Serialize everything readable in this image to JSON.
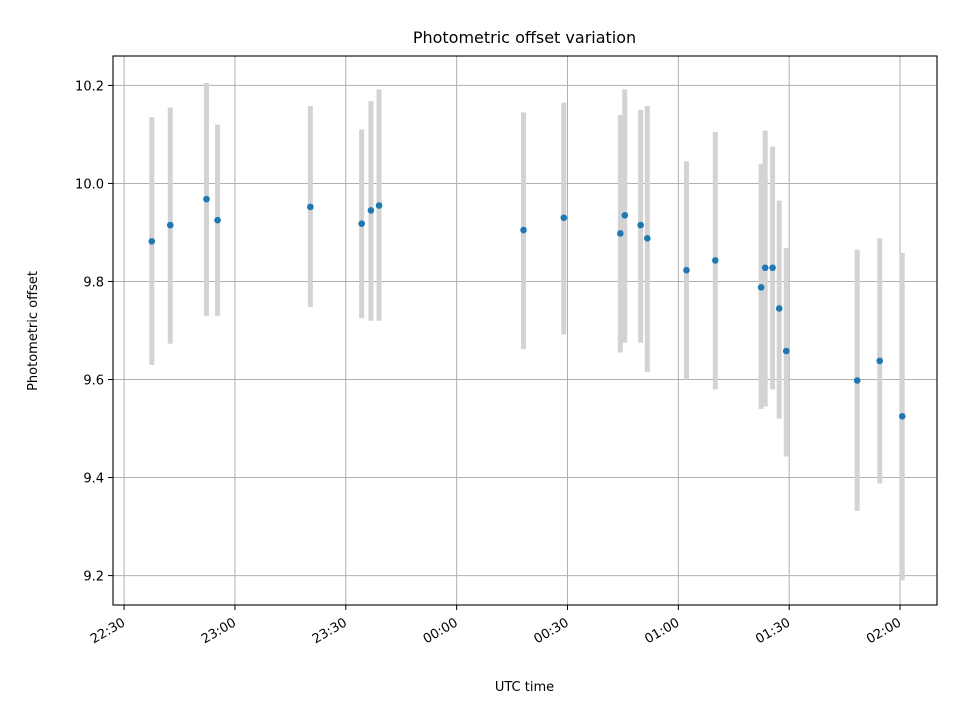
{
  "chart_data": {
    "type": "scatter",
    "title": "Photometric offset variation",
    "xlabel": "UTC time",
    "ylabel": "Photometric offset",
    "x_ticks": [
      "22:30",
      "23:00",
      "23:30",
      "00:00",
      "00:30",
      "01:00",
      "01:30",
      "02:00"
    ],
    "x_tick_minutes": [
      0,
      30,
      60,
      90,
      120,
      150,
      180,
      210
    ],
    "xlim_minutes": [
      -3,
      220
    ],
    "y_ticks": [
      9.2,
      9.4,
      9.6,
      9.8,
      10.0,
      10.2
    ],
    "ylim": [
      9.14,
      10.26
    ],
    "grid": true,
    "colors": {
      "point": "#1f77b4",
      "errorbar": "#d3d3d3",
      "grid": "#b0b0b0"
    },
    "points": [
      {
        "time": "22:37.5",
        "t": 7.5,
        "y": 9.882,
        "lo": 9.63,
        "hi": 10.135
      },
      {
        "time": "22:42.5",
        "t": 12.5,
        "y": 9.915,
        "lo": 9.673,
        "hi": 10.155
      },
      {
        "time": "22:52.3",
        "t": 22.3,
        "y": 9.968,
        "lo": 9.73,
        "hi": 10.205
      },
      {
        "time": "22:55.3",
        "t": 25.3,
        "y": 9.925,
        "lo": 9.73,
        "hi": 10.12
      },
      {
        "time": "23:20.4",
        "t": 50.4,
        "y": 9.952,
        "lo": 9.748,
        "hi": 10.158
      },
      {
        "time": "23:34.3",
        "t": 64.3,
        "y": 9.918,
        "lo": 9.725,
        "hi": 10.11
      },
      {
        "time": "23:36.8",
        "t": 66.8,
        "y": 9.945,
        "lo": 9.72,
        "hi": 10.168
      },
      {
        "time": "23:39.0",
        "t": 69.0,
        "y": 9.955,
        "lo": 9.72,
        "hi": 10.192
      },
      {
        "time": "00:18.1",
        "t": 108.1,
        "y": 9.905,
        "lo": 9.662,
        "hi": 10.145
      },
      {
        "time": "00:29.0",
        "t": 119.0,
        "y": 9.93,
        "lo": 9.692,
        "hi": 10.165
      },
      {
        "time": "00:44.3",
        "t": 134.3,
        "y": 9.898,
        "lo": 9.655,
        "hi": 10.14
      },
      {
        "time": "00:45.5",
        "t": 135.5,
        "y": 9.935,
        "lo": 9.675,
        "hi": 10.192
      },
      {
        "time": "00:49.8",
        "t": 139.8,
        "y": 9.915,
        "lo": 9.675,
        "hi": 10.15
      },
      {
        "time": "00:51.6",
        "t": 141.6,
        "y": 9.888,
        "lo": 9.615,
        "hi": 10.158
      },
      {
        "time": "01:02.2",
        "t": 152.2,
        "y": 9.823,
        "lo": 9.6,
        "hi": 10.045
      },
      {
        "time": "01:10.0",
        "t": 160.0,
        "y": 9.843,
        "lo": 9.58,
        "hi": 10.105
      },
      {
        "time": "01:22.4",
        "t": 172.4,
        "y": 9.788,
        "lo": 9.54,
        "hi": 10.04
      },
      {
        "time": "01:23.5",
        "t": 173.5,
        "y": 9.828,
        "lo": 9.545,
        "hi": 10.108
      },
      {
        "time": "01:25.5",
        "t": 175.5,
        "y": 9.828,
        "lo": 9.58,
        "hi": 10.075
      },
      {
        "time": "01:27.3",
        "t": 177.3,
        "y": 9.745,
        "lo": 9.52,
        "hi": 9.965
      },
      {
        "time": "01:29.2",
        "t": 179.2,
        "y": 9.658,
        "lo": 9.443,
        "hi": 9.868
      },
      {
        "time": "01:48.4",
        "t": 198.4,
        "y": 9.598,
        "lo": 9.332,
        "hi": 9.865
      },
      {
        "time": "01:54.5",
        "t": 204.5,
        "y": 9.638,
        "lo": 9.388,
        "hi": 9.888
      },
      {
        "time": "02:00.6",
        "t": 210.6,
        "y": 9.525,
        "lo": 9.19,
        "hi": 9.858
      }
    ]
  }
}
